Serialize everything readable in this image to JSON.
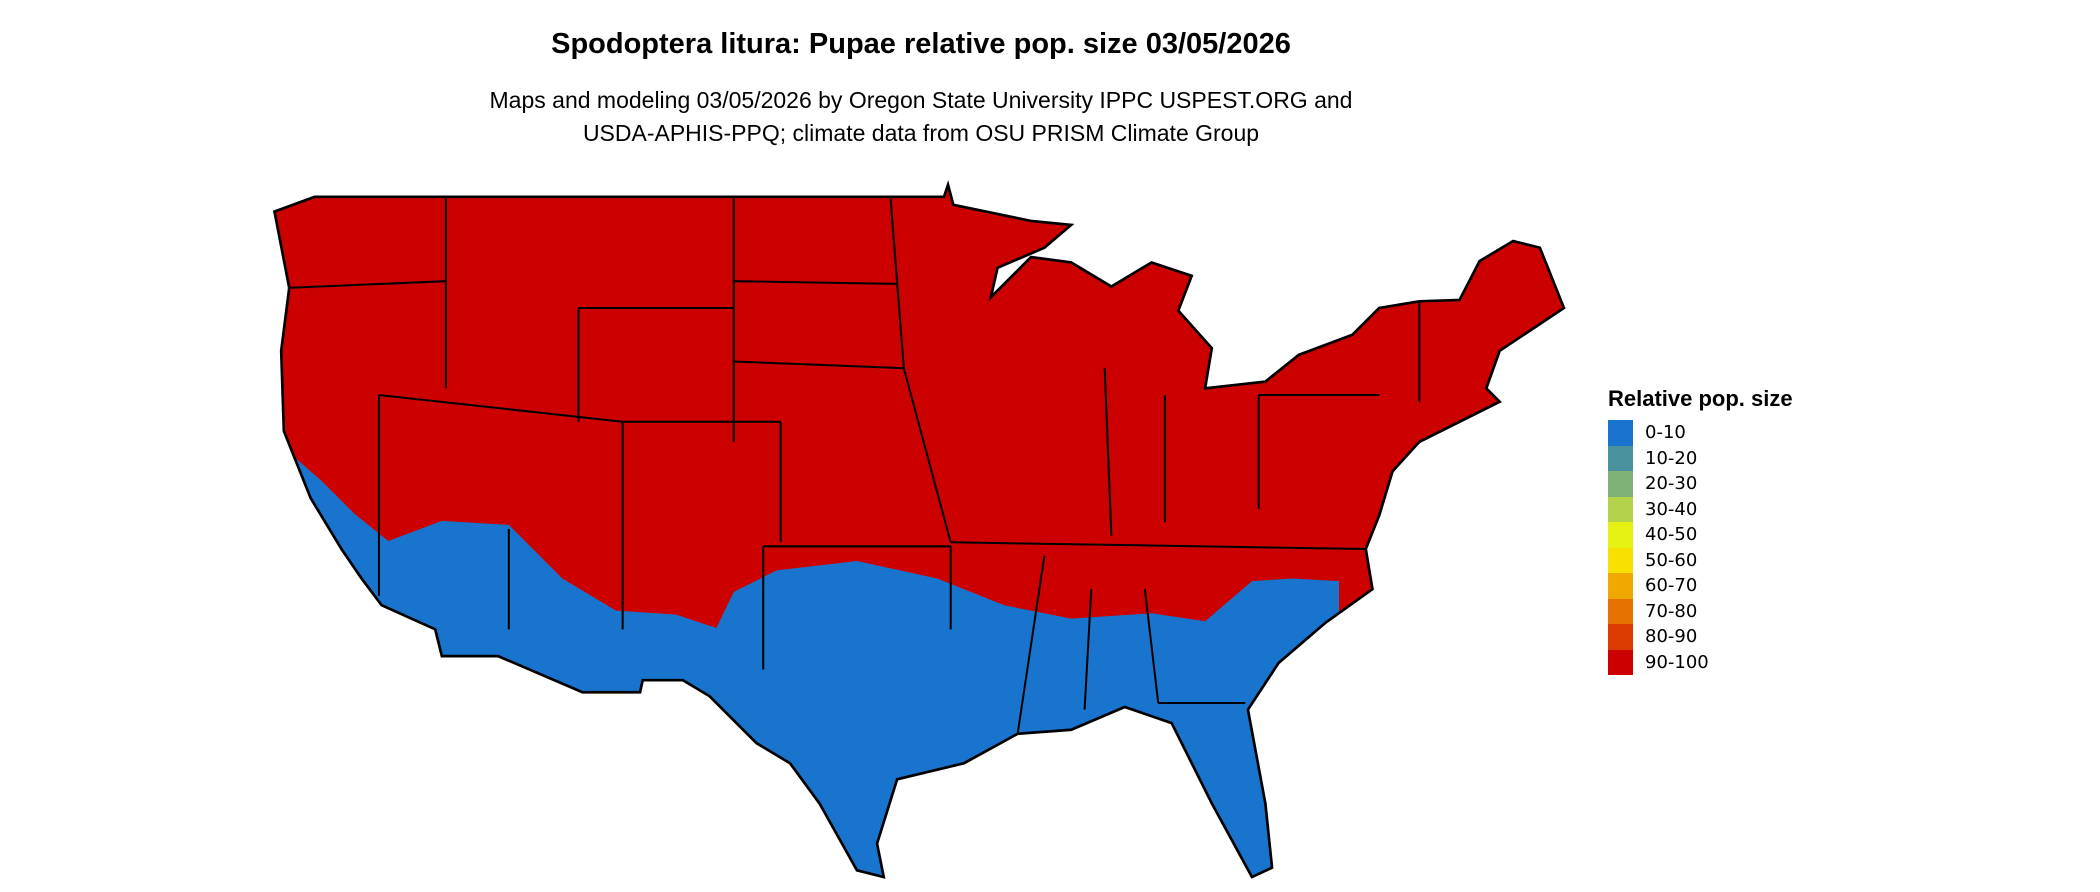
{
  "title": "Spodoptera litura: Pupae relative pop. size 03/05/2026",
  "subtitle": [
    "Maps and modeling 03/05/2026 by Oregon State University IPPC USPEST.ORG and",
    "USDA-APHIS-PPQ; climate data from OSU PRISM Climate Group"
  ],
  "legend": {
    "title": "Relative pop. size",
    "items": [
      {
        "label": "0-10",
        "color": "#1874CD"
      },
      {
        "label": "10-20",
        "color": "#4A919E"
      },
      {
        "label": "20-30",
        "color": "#7FB077"
      },
      {
        "label": "30-40",
        "color": "#B4D14A"
      },
      {
        "label": "40-50",
        "color": "#E5F213"
      },
      {
        "label": "50-60",
        "color": "#F8E100"
      },
      {
        "label": "60-70",
        "color": "#EFA800"
      },
      {
        "label": "70-80",
        "color": "#E57200"
      },
      {
        "label": "80-90",
        "color": "#DB3A00"
      },
      {
        "label": "90-100",
        "color": "#CD0000"
      }
    ]
  }
}
